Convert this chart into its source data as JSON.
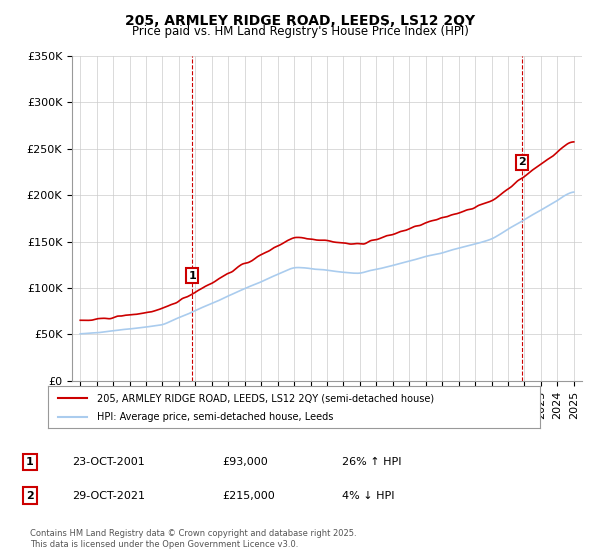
{
  "title1": "205, ARMLEY RIDGE ROAD, LEEDS, LS12 2QY",
  "title2": "Price paid vs. HM Land Registry's House Price Index (HPI)",
  "legend1": "205, ARMLEY RIDGE ROAD, LEEDS, LS12 2QY (semi-detached house)",
  "legend2": "HPI: Average price, semi-detached house, Leeds",
  "purchase1": {
    "date_num": 2001.81,
    "price": 93000,
    "label": "1",
    "date_str": "23-OCT-2001",
    "price_str": "£93,000",
    "pct_str": "26% ↑ HPI"
  },
  "purchase2": {
    "date_num": 2021.83,
    "price": 215000,
    "label": "2",
    "date_str": "29-OCT-2021",
    "price_str": "£215,000",
    "pct_str": "4% ↓ HPI"
  },
  "footer": "Contains HM Land Registry data © Crown copyright and database right 2025.\nThis data is licensed under the Open Government Licence v3.0.",
  "ylim": [
    0,
    350000
  ],
  "yticks": [
    0,
    50000,
    100000,
    150000,
    200000,
    250000,
    300000,
    350000
  ],
  "ytick_labels": [
    "£0",
    "£50K",
    "£100K",
    "£150K",
    "£200K",
    "£250K",
    "£300K",
    "£350K"
  ],
  "xlim": [
    1994.5,
    2025.5
  ],
  "line_color_red": "#cc0000",
  "line_color_blue": "#aaccee",
  "vline_color": "#cc0000",
  "bg_color": "#ffffff",
  "grid_color": "#cccccc",
  "marker_box_color": "#cc0000"
}
